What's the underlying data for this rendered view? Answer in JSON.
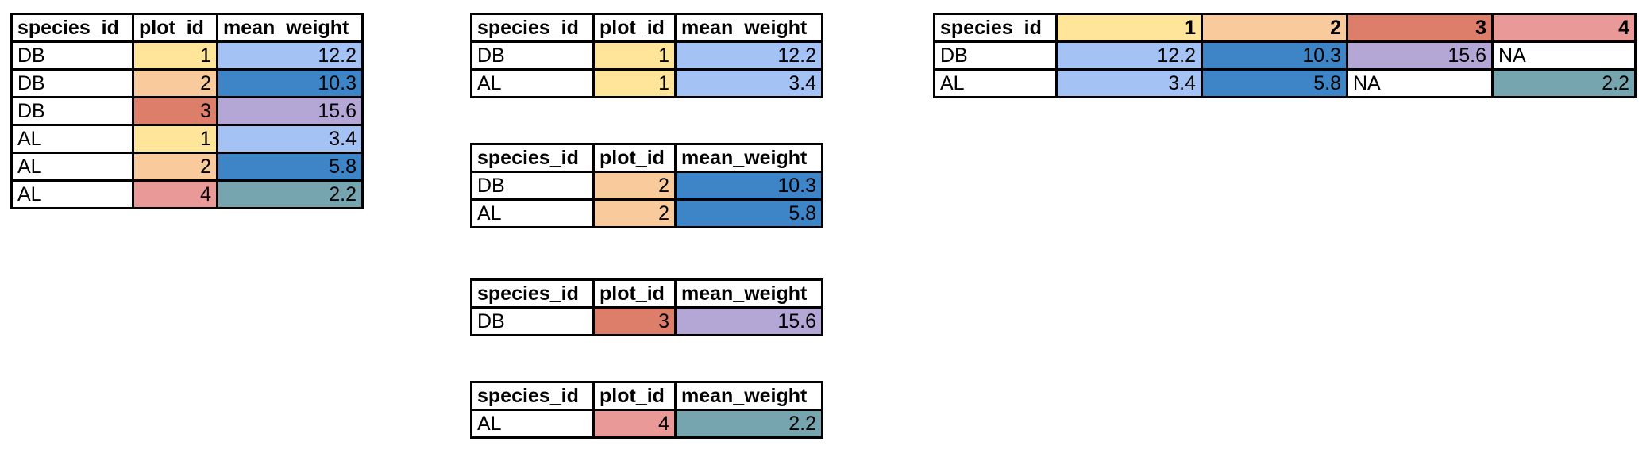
{
  "colors": {
    "plot_1": "#ffe599",
    "plot_2": "#f9cb9c",
    "plot_3": "#dd7e6b",
    "plot_4": "#ea9999",
    "weight_12_2": "#a4c2f4",
    "weight_10_3": "#3d85c6",
    "weight_15_6": "#b4a7d6",
    "weight_2_2": "#76a5af"
  },
  "long_table": {
    "headers": [
      "species_id",
      "plot_id",
      "mean_weight"
    ],
    "rows": [
      [
        "DB",
        "1",
        "12.2"
      ],
      [
        "DB",
        "2",
        "10.3"
      ],
      [
        "DB",
        "3",
        "15.6"
      ],
      [
        "AL",
        "1",
        "3.4"
      ],
      [
        "AL",
        "2",
        "5.8"
      ],
      [
        "AL",
        "4",
        "2.2"
      ]
    ]
  },
  "split_tables": [
    {
      "headers": [
        "species_id",
        "plot_id",
        "mean_weight"
      ],
      "rows": [
        [
          "DB",
          "1",
          "12.2"
        ],
        [
          "AL",
          "1",
          "3.4"
        ]
      ]
    },
    {
      "headers": [
        "species_id",
        "plot_id",
        "mean_weight"
      ],
      "rows": [
        [
          "DB",
          "2",
          "10.3"
        ],
        [
          "AL",
          "2",
          "5.8"
        ]
      ]
    },
    {
      "headers": [
        "species_id",
        "plot_id",
        "mean_weight"
      ],
      "rows": [
        [
          "DB",
          "3",
          "15.6"
        ]
      ]
    },
    {
      "headers": [
        "species_id",
        "plot_id",
        "mean_weight"
      ],
      "rows": [
        [
          "AL",
          "4",
          "2.2"
        ]
      ]
    }
  ],
  "wide_table": {
    "headers": [
      "species_id",
      "1",
      "2",
      "3",
      "4"
    ],
    "rows": [
      [
        "DB",
        "12.2",
        "10.3",
        "15.6",
        "NA"
      ],
      [
        "AL",
        "3.4",
        "5.8",
        "NA",
        "2.2"
      ]
    ]
  }
}
